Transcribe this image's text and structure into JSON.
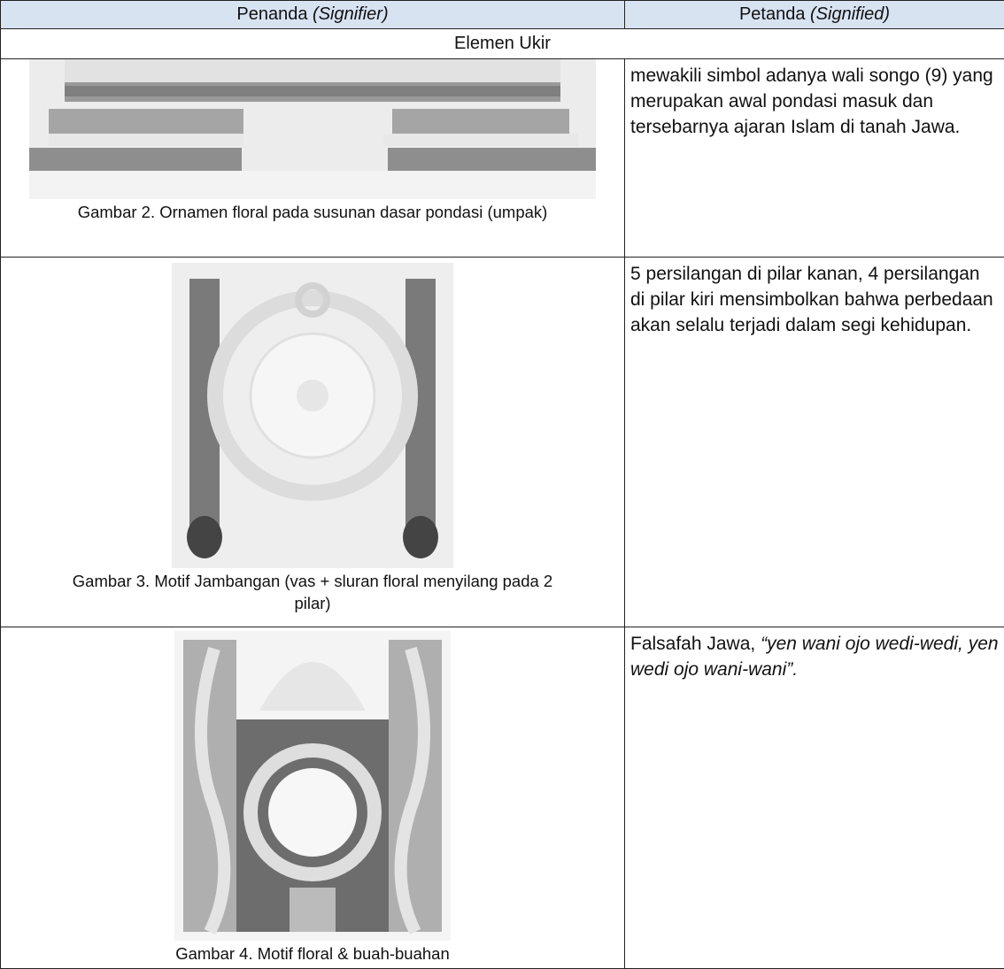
{
  "table": {
    "header": [
      {
        "text": "Penanda ",
        "italic": "(Signifier)"
      },
      {
        "text": "Petanda ",
        "italic": "(Signified)"
      }
    ],
    "section": "Elemen Ukir",
    "rows": [
      {
        "caption": "Gambar 2. Ornamen floral pada susunan dasar pondasi (umpak)",
        "meaning": "mewakili simbol adanya wali songo (9) yang merupakan awal pondasi masuk dan tersebarnya ajaran Islam di tanah Jawa."
      },
      {
        "caption": "Gambar 3. Motif Jambangan (vas + sluran floral menyilang pada 2 pilar)",
        "meaning": "5 persilangan di pilar kanan, 4 persilangan di pilar kiri mensimbolkan bahwa perbedaan akan selalu terjadi dalam segi kehidupan."
      },
      {
        "caption": "Gambar 4. Motif floral & buah-buahan",
        "meaning": "Falsafah Jawa, ",
        "meaning_italic": "“yen wani ojo wedi-wedi, yen wedi ojo wani-wani”."
      }
    ]
  }
}
